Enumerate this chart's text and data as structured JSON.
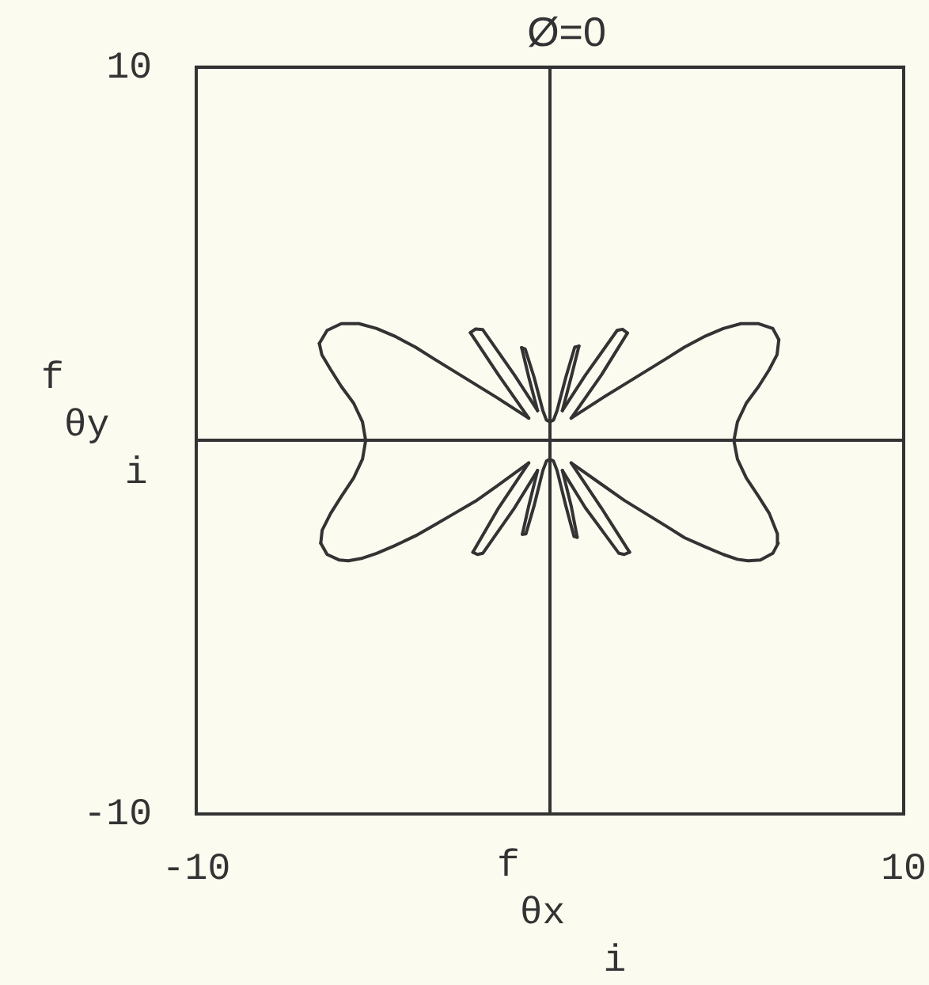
{
  "chart_data": {
    "type": "line",
    "title": "Ø=0",
    "xlabel": "f$_{θx}$$_{i}$",
    "ylabel": "f$_{θy}$$_{i}$",
    "xlim": [
      -10,
      10
    ],
    "ylim": [
      -10,
      10
    ],
    "xticks": [
      -10,
      {
        "value": 0,
        "label": null
      },
      10
    ],
    "yticks": [
      -10,
      {
        "value": 0,
        "label": null
      },
      10
    ],
    "grid": true,
    "legend": false,
    "marker": "none",
    "line_style": "solid",
    "series": [
      {
        "color": "#333333",
        "x": [
          6.45,
          6.43,
          6.2,
          5.9,
          5.55,
          5.3,
          5.2,
          5.3,
          5.55,
          5.9,
          6.2,
          6.42,
          6.47
        ],
        "values": [
          -2.75,
          -2.5,
          -1.95,
          -1.5,
          -1.0,
          -0.5,
          0,
          0.5,
          1.0,
          1.45,
          1.9,
          2.3,
          2.7
        ]
      },
      {
        "color": "#333333",
        "x": [
          0.6,
          1.5,
          2.1,
          2.7,
          3.3,
          3.8,
          4.4,
          4.9,
          5.4,
          5.9,
          6.3,
          6.47
        ],
        "values": [
          0.6,
          1.15,
          1.5,
          1.85,
          2.2,
          2.5,
          2.8,
          3.0,
          3.13,
          3.13,
          3.0,
          2.7
        ]
      },
      {
        "color": "#333333",
        "x": [
          0.6,
          1.45,
          2.19
        ],
        "values": [
          0.6,
          1.75,
          2.88
        ]
      },
      {
        "color": "#333333",
        "x": [
          0.35,
          1.0,
          1.9,
          2.05,
          2.19
        ],
        "values": [
          0.8,
          1.75,
          2.95,
          2.98,
          2.88
        ]
      },
      {
        "color": "#333333",
        "x": [
          0.35,
          0.6,
          0.82
        ],
        "values": [
          0.8,
          1.7,
          2.53
        ]
      },
      {
        "color": "#333333",
        "x": [
          0,
          0.1,
          0.2,
          0.45,
          0.7,
          0.82
        ],
        "values": [
          0.5,
          0.55,
          0.8,
          1.7,
          2.5,
          2.53
        ]
      },
      {
        "color": "#333333",
        "x": [
          -0.8,
          -0.7,
          -0.45,
          -0.2,
          -0.1,
          0
        ],
        "values": [
          2.49,
          2.45,
          1.7,
          0.8,
          0.55,
          0.5
        ]
      },
      {
        "color": "#333333",
        "x": [
          -0.8,
          -0.6,
          -0.35
        ],
        "values": [
          2.49,
          1.7,
          0.8
        ]
      },
      {
        "color": "#333333",
        "x": [
          -2.25,
          -2.1,
          -1.9,
          -1.0,
          -0.35
        ],
        "values": [
          2.89,
          2.99,
          2.97,
          1.75,
          0.8
        ]
      },
      {
        "color": "#333333",
        "x": [
          -2.25,
          -1.45,
          -0.6
        ],
        "values": [
          2.89,
          1.75,
          0.6
        ]
      },
      {
        "color": "#333333",
        "x": [
          -6.52,
          -6.3,
          -5.9,
          -5.4,
          -4.9,
          -4.4,
          -3.8,
          -3.3,
          -2.7,
          -2.1,
          -1.5,
          -0.6
        ],
        "values": [
          2.6,
          2.95,
          3.13,
          3.13,
          3.0,
          2.8,
          2.5,
          2.2,
          1.85,
          1.5,
          1.15,
          0.6
        ]
      },
      {
        "color": "#333333",
        "x": [
          -6.52,
          -6.45,
          -6.2,
          -5.9,
          -5.55,
          -5.3,
          -5.21,
          -5.3,
          -5.55,
          -5.9,
          -6.2,
          -6.44,
          -6.48
        ],
        "values": [
          2.6,
          2.3,
          1.9,
          1.45,
          1.0,
          0.5,
          0,
          -0.5,
          -1.0,
          -1.5,
          -1.95,
          -2.4,
          -2.75
        ]
      },
      {
        "color": "#333333",
        "x": [
          -6.48,
          -6.3,
          -5.95,
          -5.7,
          -5.3,
          -4.9,
          -4.4,
          -3.8,
          -3.3,
          -2.7,
          -2.1,
          -1.5,
          -0.6
        ],
        "values": [
          -2.75,
          -3.05,
          -3.2,
          -3.22,
          -3.15,
          -3.02,
          -2.82,
          -2.55,
          -2.28,
          -1.95,
          -1.62,
          -1.22,
          -0.6
        ]
      },
      {
        "color": "#333333",
        "x": [
          -2.18,
          -1.45,
          -0.6
        ],
        "values": [
          -2.99,
          -1.8,
          -0.6
        ]
      },
      {
        "color": "#333333",
        "x": [
          -2.18,
          -2.05,
          -1.9,
          -1.0,
          -0.35
        ],
        "values": [
          -2.99,
          -3.05,
          -3.02,
          -1.8,
          -0.8
        ]
      },
      {
        "color": "#333333",
        "x": [
          -0.78,
          -0.6,
          -0.35
        ],
        "values": [
          -2.51,
          -1.75,
          -0.8
        ]
      },
      {
        "color": "#333333",
        "x": [
          -0.78,
          -0.68,
          -0.45,
          -0.2,
          -0.1,
          0
        ],
        "values": [
          -2.51,
          -2.5,
          -1.75,
          -0.8,
          -0.55,
          -0.5
        ]
      },
      {
        "color": "#333333",
        "x": [
          0,
          0.1,
          0.2,
          0.45,
          0.68,
          0.77
        ],
        "values": [
          -0.5,
          -0.55,
          -0.8,
          -1.75,
          -2.57,
          -2.59
        ]
      },
      {
        "color": "#333333",
        "x": [
          0.35,
          0.6,
          0.77
        ],
        "values": [
          -0.8,
          -1.75,
          -2.59
        ]
      },
      {
        "color": "#333333",
        "x": [
          0.35,
          1.0,
          1.95,
          2.1,
          2.25
        ],
        "values": [
          -0.8,
          -1.8,
          -3.02,
          -3.05,
          -2.99
        ]
      },
      {
        "color": "#333333",
        "x": [
          0.6,
          1.45,
          2.25
        ],
        "values": [
          -0.6,
          -1.8,
          -2.99
        ]
      },
      {
        "color": "#333333",
        "x": [
          0.6,
          1.5,
          2.1,
          2.7,
          3.3,
          3.8,
          4.4,
          4.9,
          5.3,
          5.6,
          5.95,
          6.3,
          6.45
        ],
        "values": [
          -0.6,
          -1.2,
          -1.6,
          -1.95,
          -2.3,
          -2.6,
          -2.85,
          -3.05,
          -3.18,
          -3.22,
          -3.2,
          -3.02,
          -2.75
        ]
      }
    ]
  }
}
